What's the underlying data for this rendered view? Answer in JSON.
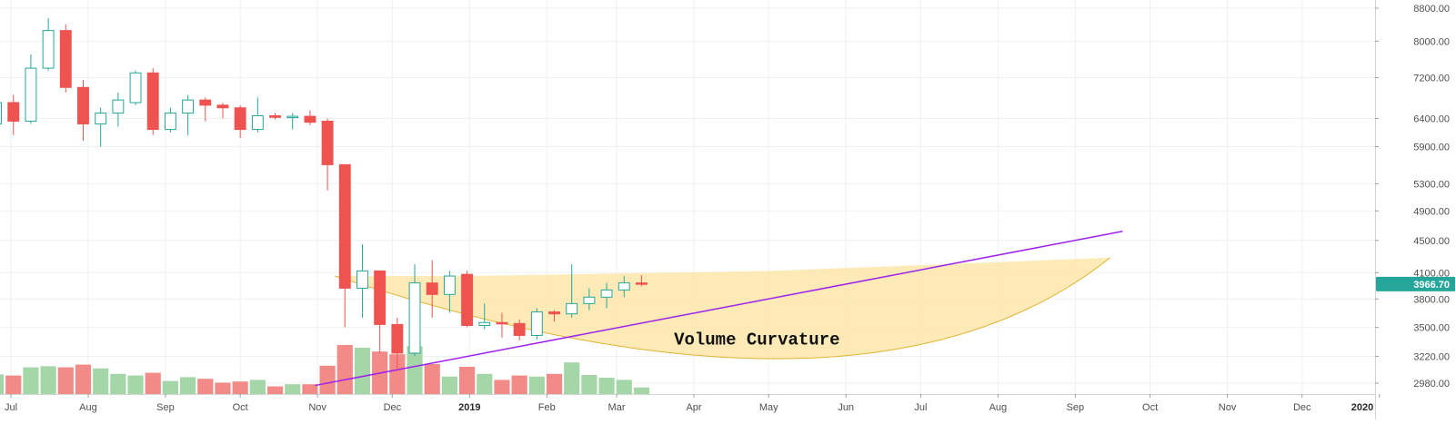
{
  "chart_data": {
    "type": "candlestick",
    "interval": "weekly",
    "colors": {
      "up": "#26a69a",
      "down": "#ef5350",
      "volume_up": "#a5d6a7",
      "volume_down": "#f28b88",
      "trendline": "#a020f0",
      "curvature_fill": "#fde6a9",
      "curvature_stroke": "#e2b230",
      "price_tag": "#26a69a",
      "grid": "#eef2f2"
    },
    "y_axis": {
      "scale": "log",
      "ylim": [
        2820,
        9000
      ],
      "tick_values": [
        2980,
        3220,
        3500,
        3800,
        4100,
        4500,
        4900,
        5300,
        5900,
        6400,
        7200,
        8000,
        8800
      ],
      "tick_labels": [
        "2980.00",
        "3220.00",
        "3500.00",
        "3800.00",
        "4100.00",
        "4500.00",
        "4900.00",
        "5300.00",
        "5900.00",
        "6400.00",
        "7200.00",
        "8000.00",
        "8800.00"
      ]
    },
    "x_axis": {
      "tick_dates": [
        "2018-07-01",
        "2018-08-01",
        "2018-09-01",
        "2018-10-01",
        "2018-11-01",
        "2018-12-01",
        "2019-01-01",
        "2019-02-01",
        "2019-03-01",
        "2019-04-01",
        "2019-05-01",
        "2019-06-01",
        "2019-07-01",
        "2019-08-01",
        "2019-09-01",
        "2019-10-01",
        "2019-11-01",
        "2019-12-01",
        "2020-01-01"
      ],
      "tick_labels": [
        "Jul",
        "Aug",
        "Sep",
        "Oct",
        "Nov",
        "Dec",
        "2019",
        "Feb",
        "Mar",
        "Apr",
        "May",
        "Jun",
        "Jul",
        "Aug",
        "Sep",
        "Oct",
        "Nov",
        "Dec",
        "2020"
      ],
      "bold_labels": [
        "2019",
        "2020"
      ]
    },
    "last_price": "3966.70",
    "candles": [
      {
        "date": "2018-06-25",
        "open": 6300,
        "high": 6800,
        "low": 6200,
        "close": 6700
      },
      {
        "date": "2018-07-02",
        "open": 6700,
        "high": 6850,
        "low": 6100,
        "close": 6350
      },
      {
        "date": "2018-07-09",
        "open": 6350,
        "high": 7700,
        "low": 6300,
        "close": 7400
      },
      {
        "date": "2018-07-16",
        "open": 7400,
        "high": 8550,
        "low": 7350,
        "close": 8250
      },
      {
        "date": "2018-07-23",
        "open": 8250,
        "high": 8400,
        "low": 6900,
        "close": 7000
      },
      {
        "date": "2018-07-30",
        "open": 7000,
        "high": 7150,
        "low": 6000,
        "close": 6300
      },
      {
        "date": "2018-08-06",
        "open": 6300,
        "high": 6600,
        "low": 5900,
        "close": 6500
      },
      {
        "date": "2018-08-13",
        "open": 6500,
        "high": 6900,
        "low": 6250,
        "close": 6750
      },
      {
        "date": "2018-08-20",
        "open": 6700,
        "high": 7350,
        "low": 6650,
        "close": 7300
      },
      {
        "date": "2018-08-27",
        "open": 7300,
        "high": 7400,
        "low": 6100,
        "close": 6200
      },
      {
        "date": "2018-09-03",
        "open": 6200,
        "high": 6600,
        "low": 6150,
        "close": 6500
      },
      {
        "date": "2018-09-10",
        "open": 6500,
        "high": 6850,
        "low": 6100,
        "close": 6750
      },
      {
        "date": "2018-09-17",
        "open": 6750,
        "high": 6800,
        "low": 6350,
        "close": 6650
      },
      {
        "date": "2018-09-24",
        "open": 6650,
        "high": 6700,
        "low": 6400,
        "close": 6600
      },
      {
        "date": "2018-10-01",
        "open": 6600,
        "high": 6650,
        "low": 6050,
        "close": 6200
      },
      {
        "date": "2018-10-08",
        "open": 6200,
        "high": 6800,
        "low": 6150,
        "close": 6450
      },
      {
        "date": "2018-10-15",
        "open": 6450,
        "high": 6500,
        "low": 6380,
        "close": 6420
      },
      {
        "date": "2018-10-22",
        "open": 6420,
        "high": 6500,
        "low": 6200,
        "close": 6440
      },
      {
        "date": "2018-10-29",
        "open": 6440,
        "high": 6550,
        "low": 6280,
        "close": 6330
      },
      {
        "date": "2018-11-05",
        "open": 6350,
        "high": 6400,
        "low": 5200,
        "close": 5600
      },
      {
        "date": "2018-11-12",
        "open": 5600,
        "high": 5600,
        "low": 3500,
        "close": 3920
      },
      {
        "date": "2018-11-19",
        "open": 3920,
        "high": 4450,
        "low": 3600,
        "close": 4120
      },
      {
        "date": "2018-11-26",
        "open": 4120,
        "high": 4130,
        "low": 3250,
        "close": 3530
      },
      {
        "date": "2018-12-03",
        "open": 3530,
        "high": 3600,
        "low": 3100,
        "close": 3250
      },
      {
        "date": "2018-12-10",
        "open": 3250,
        "high": 4200,
        "low": 3220,
        "close": 3980
      },
      {
        "date": "2018-12-17",
        "open": 3980,
        "high": 4250,
        "low": 3600,
        "close": 3850
      },
      {
        "date": "2018-12-24",
        "open": 3850,
        "high": 4120,
        "low": 3650,
        "close": 4060
      },
      {
        "date": "2018-12-31",
        "open": 4080,
        "high": 4120,
        "low": 3500,
        "close": 3520
      },
      {
        "date": "2019-01-07",
        "open": 3520,
        "high": 3750,
        "low": 3480,
        "close": 3550
      },
      {
        "date": "2019-01-14",
        "open": 3550,
        "high": 3650,
        "low": 3400,
        "close": 3540
      },
      {
        "date": "2019-01-21",
        "open": 3540,
        "high": 3580,
        "low": 3370,
        "close": 3420
      },
      {
        "date": "2019-01-28",
        "open": 3420,
        "high": 3700,
        "low": 3380,
        "close": 3660
      },
      {
        "date": "2019-02-04",
        "open": 3660,
        "high": 3680,
        "low": 3560,
        "close": 3640
      },
      {
        "date": "2019-02-11",
        "open": 3640,
        "high": 4200,
        "low": 3600,
        "close": 3750
      },
      {
        "date": "2019-02-18",
        "open": 3750,
        "high": 3920,
        "low": 3680,
        "close": 3820
      },
      {
        "date": "2019-02-25",
        "open": 3820,
        "high": 3980,
        "low": 3700,
        "close": 3900
      },
      {
        "date": "2019-03-04",
        "open": 3900,
        "high": 4060,
        "low": 3820,
        "close": 3980
      },
      {
        "date": "2019-03-11",
        "open": 3980,
        "high": 4070,
        "low": 3940,
        "close": 3966.7
      }
    ],
    "volume": {
      "max": 100,
      "values": [
        36,
        34,
        49,
        51,
        49,
        54,
        47,
        37,
        34,
        39,
        24,
        31,
        28,
        21,
        23,
        26,
        14,
        18,
        18,
        52,
        90,
        85,
        78,
        73,
        88,
        55,
        32,
        50,
        37,
        26,
        34,
        32,
        37,
        58,
        35,
        30,
        26,
        12
      ],
      "up": [
        true,
        false,
        true,
        true,
        false,
        false,
        true,
        true,
        true,
        false,
        true,
        true,
        false,
        false,
        false,
        true,
        false,
        true,
        false,
        false,
        false,
        true,
        false,
        false,
        true,
        false,
        true,
        false,
        true,
        false,
        false,
        true,
        false,
        true,
        true,
        true,
        true,
        true
      ]
    },
    "trendline": {
      "from": {
        "date": "2018-10-31",
        "price": 2960
      },
      "to": {
        "date": "2019-09-20",
        "price": 4620
      }
    },
    "annotations": [
      {
        "text": "Volume Curvature",
        "date": "2019-03-24",
        "price": 3330
      }
    ],
    "curvature_region": {
      "top_edge": [
        {
          "date": "2018-11-08",
          "price": 4060
        },
        {
          "date": "2019-01-01",
          "price": 4060
        },
        {
          "date": "2019-05-01",
          "price": 4120
        },
        {
          "date": "2019-09-15",
          "price": 4280
        }
      ],
      "bottom_control": {
        "date": "2019-06-10",
        "price": 2950
      },
      "bottom_end": {
        "date": "2019-09-15",
        "price": 4280
      }
    }
  }
}
